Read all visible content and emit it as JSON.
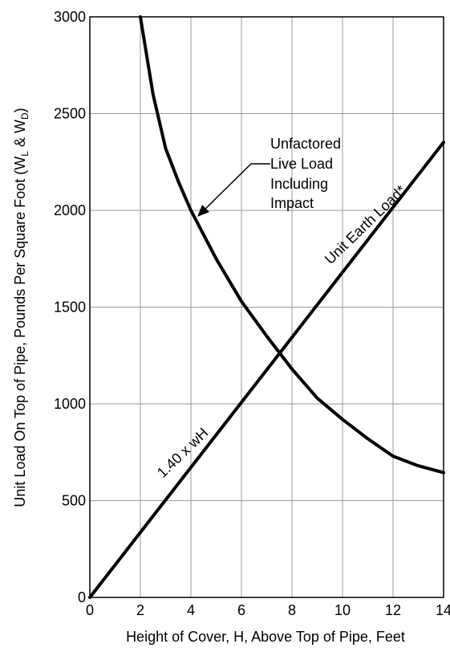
{
  "chart_data": {
    "type": "line",
    "title": "",
    "xlabel": "Height of Cover, H, Above Top of Pipe, Feet",
    "ylabel": "Unit Load On Top of Pipe, Pounds Per Square Foot (W",
    "ylabel_sub_L": "L",
    "ylabel_amp": " & W",
    "ylabel_sub_D": "D",
    "ylabel_close": ")",
    "xlim": [
      0,
      14
    ],
    "ylim": [
      0,
      3000
    ],
    "x_ticks": [
      0,
      2,
      4,
      6,
      8,
      10,
      12,
      14
    ],
    "y_ticks": [
      0,
      500,
      1000,
      1500,
      2000,
      2500,
      3000
    ],
    "x_tick_labels": [
      "0",
      "2",
      "4",
      "6",
      "8",
      "10",
      "12",
      "14"
    ],
    "y_tick_labels": [
      "0",
      "500",
      "1000",
      "1500",
      "2000",
      "2500",
      "3000"
    ],
    "grid": true,
    "series": [
      {
        "name": "Unit Earth Load*",
        "x": [
          0,
          14
        ],
        "y": [
          0,
          2352
        ]
      },
      {
        "name": "Unfactored Live Load Including Impact",
        "x": [
          2,
          2.5,
          3,
          3.5,
          4,
          5,
          6,
          7,
          8,
          9,
          10,
          11,
          12,
          13,
          14
        ],
        "y": [
          3000,
          2600,
          2320,
          2150,
          2000,
          1750,
          1530,
          1350,
          1180,
          1030,
          920,
          820,
          730,
          680,
          645
        ]
      }
    ],
    "annotations": {
      "earth_load_label": "Unit Earth Load*",
      "formula_label": "1.40 x wH",
      "live_load_lines": [
        "Unfactored",
        "Live Load",
        "Including",
        "Impact"
      ]
    }
  }
}
